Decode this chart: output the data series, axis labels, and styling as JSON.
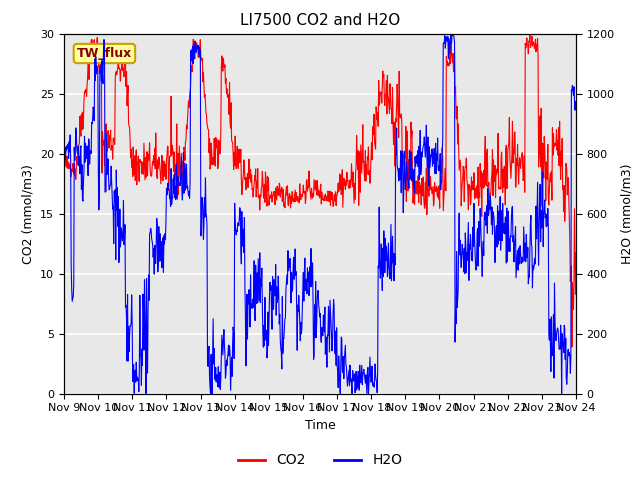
{
  "title": "LI7500 CO2 and H2O",
  "xlabel": "Time",
  "ylabel_left": "CO2 (mmol/m3)",
  "ylabel_right": "H2O (mmol/m3)",
  "ylim_left": [
    0,
    30
  ],
  "ylim_right": [
    0,
    1200
  ],
  "yticks_left": [
    0,
    5,
    10,
    15,
    20,
    25,
    30
  ],
  "yticks_right": [
    0,
    200,
    400,
    600,
    800,
    1000,
    1200
  ],
  "xtick_labels": [
    "Nov 9",
    "Nov 10",
    "Nov 11",
    "Nov 12",
    "Nov 13",
    "Nov 14",
    "Nov 15",
    "Nov 16",
    "Nov 17",
    "Nov 18",
    "Nov 19",
    "Nov 20",
    "Nov 21",
    "Nov 22",
    "Nov 23",
    "Nov 24"
  ],
  "co2_color": "#FF0000",
  "h2o_color": "#0000FF",
  "legend_label_co2": "CO2",
  "legend_label_h2o": "H2O",
  "annotation_text": "TW_flux",
  "background_color": "#E8E8E8",
  "grid_color": "#FFFFFF",
  "title_fontsize": 11,
  "axis_fontsize": 9,
  "tick_fontsize": 8,
  "legend_fontsize": 10,
  "linewidth": 0.8
}
